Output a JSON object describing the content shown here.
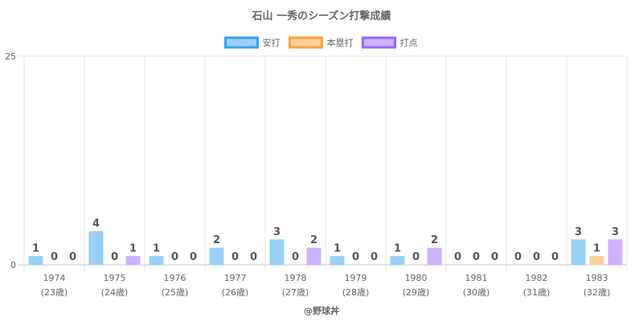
{
  "chart_data": {
    "type": "bar",
    "title": "石山 一秀のシーズン打撃成績",
    "categories": [
      "1974",
      "1975",
      "1976",
      "1977",
      "1978",
      "1979",
      "1980",
      "1981",
      "1982",
      "1983"
    ],
    "ages": [
      "(23歳)",
      "(24歳)",
      "(25歳)",
      "(26歳)",
      "(27歳)",
      "(28歳)",
      "(29歳)",
      "(30歳)",
      "(31歳)",
      "(32歳)"
    ],
    "series": [
      {
        "name": "安打",
        "values": [
          1,
          4,
          1,
          2,
          3,
          1,
          1,
          0,
          0,
          3
        ],
        "color": "#9ad0f5",
        "border": "#36a2eb"
      },
      {
        "name": "本塁打",
        "values": [
          0,
          0,
          0,
          0,
          0,
          0,
          0,
          0,
          0,
          1
        ],
        "color": "#ffcf9f",
        "border": "#ff9f40"
      },
      {
        "name": "打点",
        "values": [
          0,
          1,
          0,
          0,
          2,
          0,
          2,
          0,
          0,
          3
        ],
        "color": "#ccb2ff",
        "border": "#9966ff"
      }
    ],
    "ylim": [
      0,
      25
    ],
    "yticks": [
      "0",
      "25"
    ],
    "grid": true,
    "legend": "top-center"
  },
  "footer": "@野球丼"
}
